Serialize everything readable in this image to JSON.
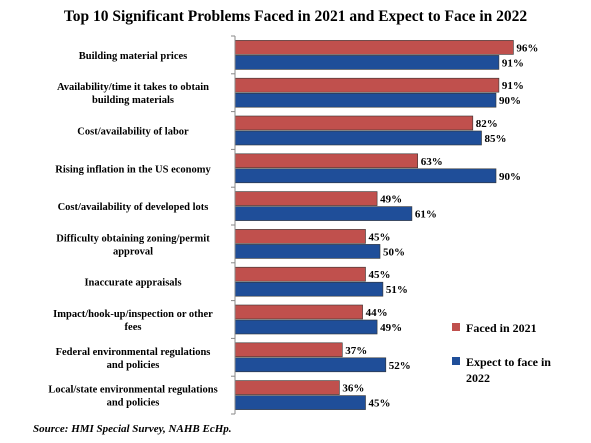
{
  "chart_data": {
    "type": "bar",
    "orientation": "horizontal",
    "title": "Top 10 Significant Problems Faced in 2021 and Expect to Face in 2022",
    "categories": [
      [
        "Building material prices"
      ],
      [
        "Availability/time it takes to obtain",
        "building materials"
      ],
      [
        "Cost/availability of labor"
      ],
      [
        "Rising inflation in the US economy"
      ],
      [
        "Cost/availability of developed lots"
      ],
      [
        "Difficulty obtaining zoning/permit",
        "approval"
      ],
      [
        "Inaccurate appraisals"
      ],
      [
        "Impact/hook-up/inspection or other",
        "fees"
      ],
      [
        "Federal environmental regulations",
        "and policies"
      ],
      [
        "Local/state environmental regulations",
        "and policies"
      ]
    ],
    "series": [
      {
        "name": "Faced in 2021",
        "color": "#C0504D",
        "values": [
          96,
          91,
          82,
          63,
          49,
          45,
          45,
          44,
          37,
          36
        ]
      },
      {
        "name": "Expect to face in 2022",
        "color": "#1F4E99",
        "values": [
          91,
          90,
          85,
          90,
          61,
          50,
          51,
          49,
          52,
          45
        ]
      }
    ],
    "value_suffix": "%",
    "xlim": [
      0,
      100
    ],
    "grid": false,
    "legend_position": "right"
  },
  "legend": {
    "faced": [
      "Faced in 2021"
    ],
    "expect": [
      "Expect to face in",
      "2022"
    ]
  },
  "source": "Source: HMI Special Survey, NAHB EcHp."
}
